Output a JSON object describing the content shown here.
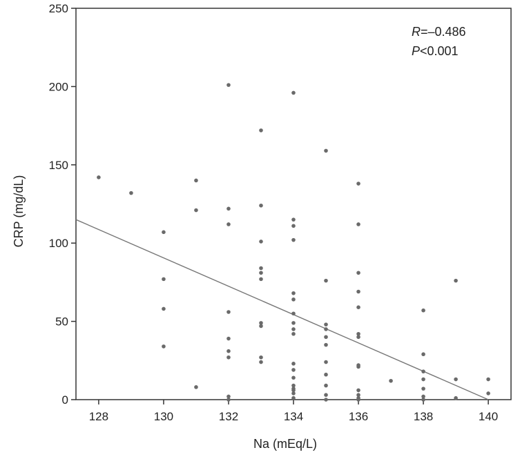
{
  "chart_data": {
    "type": "scatter",
    "xlabel": "Na (mEq/L)",
    "ylabel": "CRP (mg/dL)",
    "xlim": [
      127.3,
      140.7
    ],
    "ylim": [
      0,
      250
    ],
    "x_ticks": [
      128,
      130,
      132,
      134,
      136,
      138,
      140
    ],
    "x_tick_labels": [
      "128",
      "130",
      "132",
      "134",
      "136",
      "138",
      "140"
    ],
    "y_ticks": [
      0,
      50,
      100,
      150,
      200,
      250
    ],
    "y_tick_labels": [
      "0",
      "50",
      "100",
      "150",
      "200",
      "250"
    ],
    "grid": false,
    "legend": "none",
    "annotations": {
      "r_label": "R",
      "r_value": "=–0.486",
      "p_label": "P",
      "p_value": "<0.001"
    },
    "regression_line": {
      "x": [
        127.3,
        140
      ],
      "y": [
        115,
        0
      ]
    },
    "points": [
      {
        "x": 128,
        "y": 142
      },
      {
        "x": 129,
        "y": 132
      },
      {
        "x": 130,
        "y": 107
      },
      {
        "x": 130,
        "y": 77
      },
      {
        "x": 130,
        "y": 58
      },
      {
        "x": 130,
        "y": 34
      },
      {
        "x": 131,
        "y": 140
      },
      {
        "x": 131,
        "y": 121
      },
      {
        "x": 131,
        "y": 8
      },
      {
        "x": 132,
        "y": 201
      },
      {
        "x": 132,
        "y": 122
      },
      {
        "x": 132,
        "y": 112
      },
      {
        "x": 132,
        "y": 56
      },
      {
        "x": 132,
        "y": 39
      },
      {
        "x": 132,
        "y": 31
      },
      {
        "x": 132,
        "y": 27
      },
      {
        "x": 132,
        "y": 2
      },
      {
        "x": 132,
        "y": 0
      },
      {
        "x": 133,
        "y": 172
      },
      {
        "x": 133,
        "y": 124
      },
      {
        "x": 133,
        "y": 101
      },
      {
        "x": 133,
        "y": 84
      },
      {
        "x": 133,
        "y": 81
      },
      {
        "x": 133,
        "y": 77
      },
      {
        "x": 133,
        "y": 49
      },
      {
        "x": 133,
        "y": 47
      },
      {
        "x": 133,
        "y": 27
      },
      {
        "x": 133,
        "y": 24
      },
      {
        "x": 134,
        "y": 196
      },
      {
        "x": 134,
        "y": 115
      },
      {
        "x": 134,
        "y": 111
      },
      {
        "x": 134,
        "y": 102
      },
      {
        "x": 134,
        "y": 68
      },
      {
        "x": 134,
        "y": 64
      },
      {
        "x": 134,
        "y": 55
      },
      {
        "x": 134,
        "y": 49
      },
      {
        "x": 134,
        "y": 45
      },
      {
        "x": 134,
        "y": 42
      },
      {
        "x": 134,
        "y": 23
      },
      {
        "x": 134,
        "y": 19
      },
      {
        "x": 134,
        "y": 14
      },
      {
        "x": 134,
        "y": 9
      },
      {
        "x": 134,
        "y": 7
      },
      {
        "x": 134,
        "y": 6
      },
      {
        "x": 134,
        "y": 4
      },
      {
        "x": 134,
        "y": 1
      },
      {
        "x": 135,
        "y": 159
      },
      {
        "x": 135,
        "y": 76
      },
      {
        "x": 135,
        "y": 48
      },
      {
        "x": 135,
        "y": 45
      },
      {
        "x": 135,
        "y": 40
      },
      {
        "x": 135,
        "y": 35
      },
      {
        "x": 135,
        "y": 24
      },
      {
        "x": 135,
        "y": 16
      },
      {
        "x": 135,
        "y": 9
      },
      {
        "x": 135,
        "y": 3
      },
      {
        "x": 135,
        "y": 0
      },
      {
        "x": 136,
        "y": 138
      },
      {
        "x": 136,
        "y": 112
      },
      {
        "x": 136,
        "y": 81
      },
      {
        "x": 136,
        "y": 69
      },
      {
        "x": 136,
        "y": 59
      },
      {
        "x": 136,
        "y": 42
      },
      {
        "x": 136,
        "y": 40
      },
      {
        "x": 136,
        "y": 22
      },
      {
        "x": 136,
        "y": 21
      },
      {
        "x": 136,
        "y": 6
      },
      {
        "x": 136,
        "y": 3
      },
      {
        "x": 136,
        "y": 1
      },
      {
        "x": 136,
        "y": 0
      },
      {
        "x": 137,
        "y": 12
      },
      {
        "x": 138,
        "y": 57
      },
      {
        "x": 138,
        "y": 29
      },
      {
        "x": 138,
        "y": 18
      },
      {
        "x": 138,
        "y": 13
      },
      {
        "x": 138,
        "y": 7
      },
      {
        "x": 138,
        "y": 2
      },
      {
        "x": 138,
        "y": 0
      },
      {
        "x": 139,
        "y": 76
      },
      {
        "x": 139,
        "y": 13
      },
      {
        "x": 139,
        "y": 1
      },
      {
        "x": 140,
        "y": 13
      },
      {
        "x": 140,
        "y": 4
      }
    ],
    "colors": {
      "points": "#6a6a6a",
      "line": "#777777",
      "axes": "#333333"
    }
  }
}
